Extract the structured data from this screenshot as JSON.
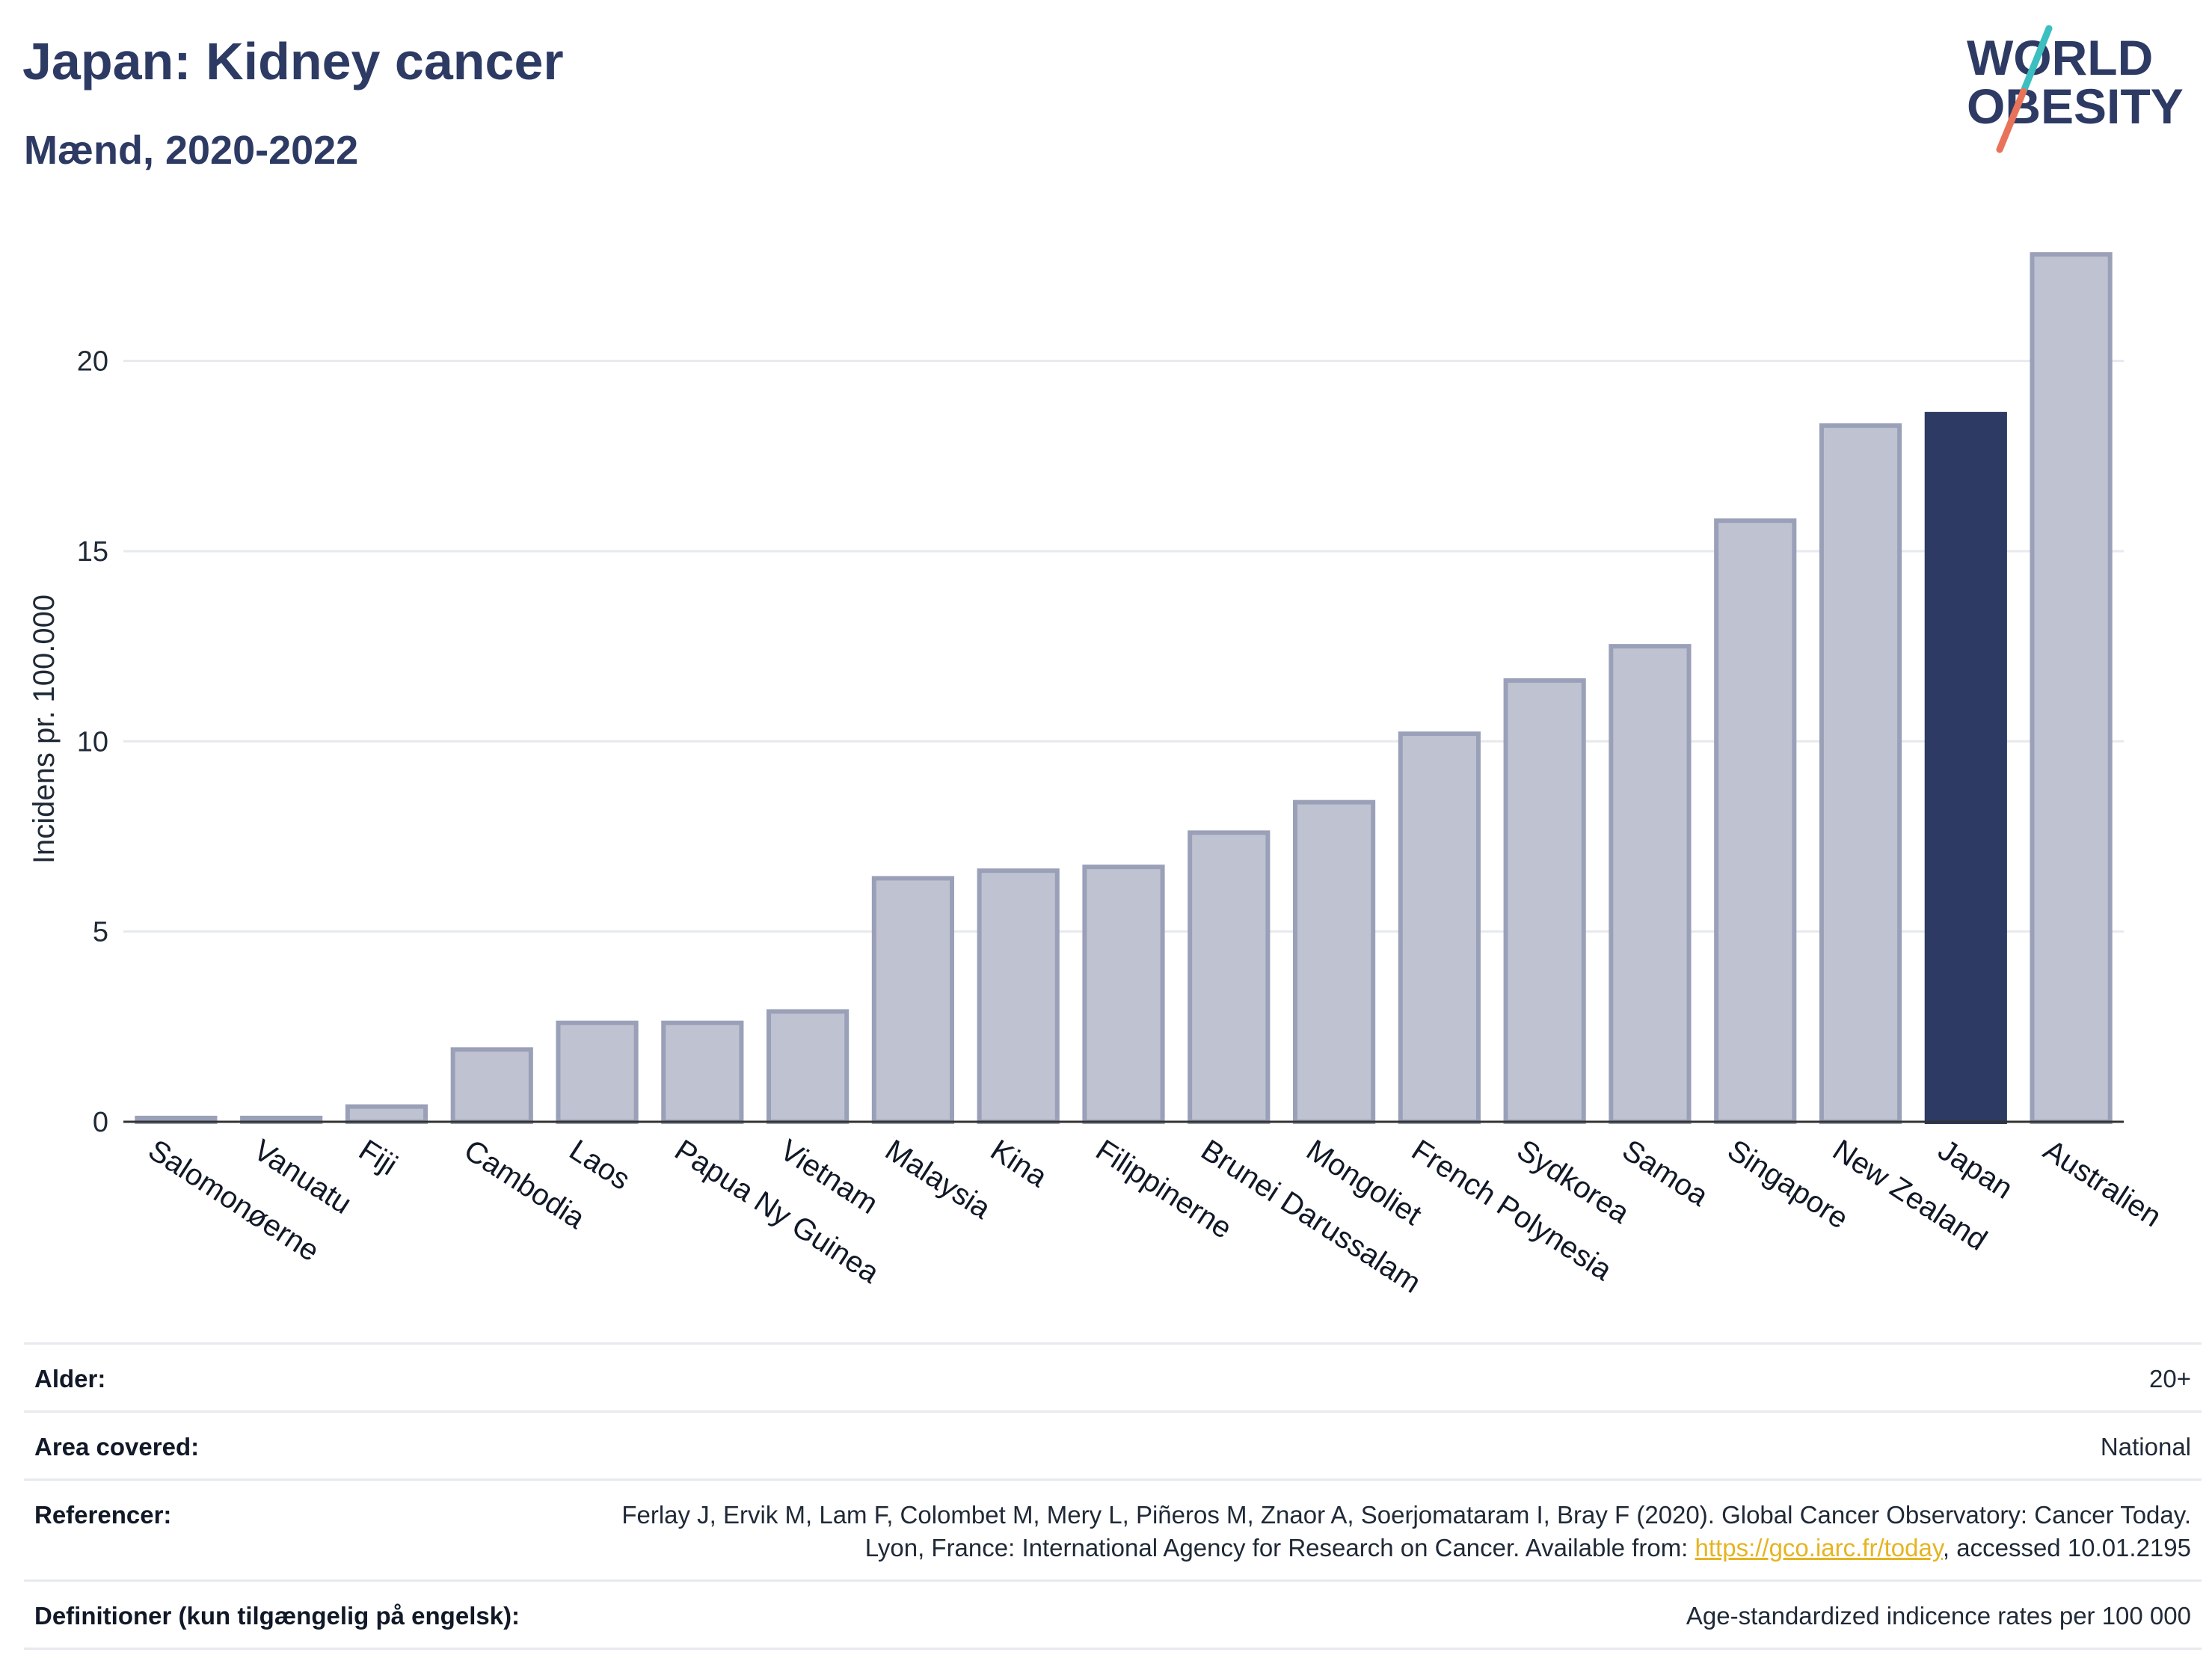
{
  "header": {
    "title": "Japan: Kidney cancer",
    "subtitle": "Mænd, 2020-2022"
  },
  "logo": {
    "line1": "WORLD",
    "line2": "OBESITY",
    "slash_colors": [
      "#3bbfc1",
      "#e8735a"
    ]
  },
  "colors": {
    "bar": "#bfc3d1",
    "bar_stroke": "#9aa0b8",
    "highlight": "#2d3a63",
    "grid": "#e6e9ee",
    "link": "#e6b422"
  },
  "chart_data": {
    "type": "bar",
    "ylabel": "Incidens pr. 100.000",
    "xlabel": "",
    "ylim": [
      0,
      23
    ],
    "yticks": [
      0,
      5,
      10,
      15,
      20
    ],
    "grid": true,
    "highlight": "Japan",
    "categories": [
      "Salomonøerne",
      "Vanuatu",
      "Fiji",
      "Cambodia",
      "Laos",
      "Papua Ny Guinea",
      "Vietnam",
      "Malaysia",
      "Kina",
      "Filippinerne",
      "Brunei Darussalam",
      "Mongoliet",
      "French Polynesia",
      "Sydkorea",
      "Samoa",
      "Singapore",
      "New Zealand",
      "Japan",
      "Australien"
    ],
    "values": [
      0.1,
      0.1,
      0.4,
      1.9,
      2.6,
      2.6,
      2.9,
      6.4,
      6.6,
      6.7,
      7.6,
      8.4,
      10.2,
      11.6,
      12.5,
      15.8,
      18.3,
      18.6,
      22.8
    ]
  },
  "meta": [
    {
      "label": "Alder:",
      "value": "20+"
    },
    {
      "label": "Area covered:",
      "value": "National"
    },
    {
      "label": "Referencer:",
      "value_pre": "Ferlay J, Ervik M, Lam F, Colombet M, Mery L, Piñeros M, Znaor A, Soerjomataram I, Bray F (2020). Global Cancer Observatory: Cancer Today. Lyon, France: International Agency for Research on Cancer. Available from: ",
      "link": "https://gco.iarc.fr/today",
      "value_post": ", accessed 10.01.2195"
    },
    {
      "label": "Definitioner (kun tilgængelig på engelsk):",
      "value": "Age-standardized indicence rates per 100 000"
    }
  ]
}
